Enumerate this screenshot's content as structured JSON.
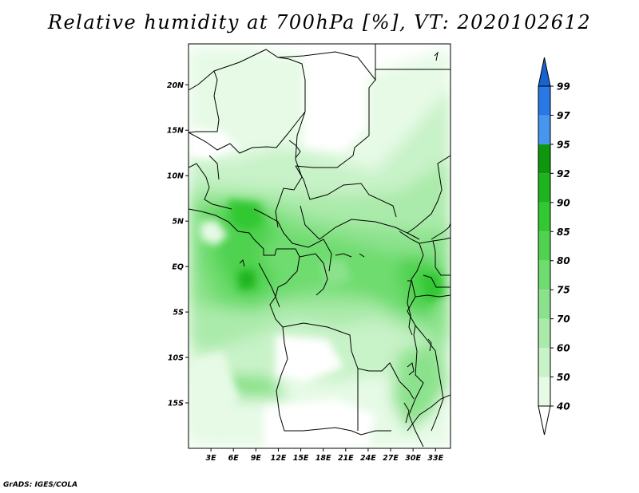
{
  "title": "Relative humidity at 700hPa [%], VT: 2020102612",
  "credit": "GrADS: IGES/COLA",
  "map": {
    "lon_range": [
      0,
      35
    ],
    "lat_range": [
      -20,
      24.5
    ],
    "lon_ticks": [
      {
        "value": 3,
        "label": "3E"
      },
      {
        "value": 6,
        "label": "6E"
      },
      {
        "value": 9,
        "label": "9E"
      },
      {
        "value": 12,
        "label": "12E"
      },
      {
        "value": 15,
        "label": "15E"
      },
      {
        "value": 18,
        "label": "18E"
      },
      {
        "value": 21,
        "label": "21E"
      },
      {
        "value": 24,
        "label": "24E"
      },
      {
        "value": 27,
        "label": "27E"
      },
      {
        "value": 30,
        "label": "30E"
      },
      {
        "value": 33,
        "label": "33E"
      }
    ],
    "lat_ticks": [
      {
        "value": 20,
        "label": "20N"
      },
      {
        "value": 15,
        "label": "15N"
      },
      {
        "value": 10,
        "label": "10N"
      },
      {
        "value": 5,
        "label": "5N"
      },
      {
        "value": 0,
        "label": "EQ"
      },
      {
        "value": -5,
        "label": "5S"
      },
      {
        "value": -10,
        "label": "10S"
      },
      {
        "value": -15,
        "label": "15S"
      }
    ]
  },
  "colorbar": {
    "levels": [
      "40",
      "50",
      "60",
      "70",
      "75",
      "80",
      "85",
      "90",
      "92",
      "95",
      "97",
      "99"
    ],
    "colors": [
      "#e6fae6",
      "#c8f2c8",
      "#aaeaaa",
      "#8ce28c",
      "#6edc6e",
      "#50d250",
      "#32c832",
      "#1eb41e",
      "#0f960f",
      "#4696f0",
      "#2878e6",
      "#1464d2"
    ],
    "below_color": "#ffffff",
    "above_color": "#1464d2"
  }
}
